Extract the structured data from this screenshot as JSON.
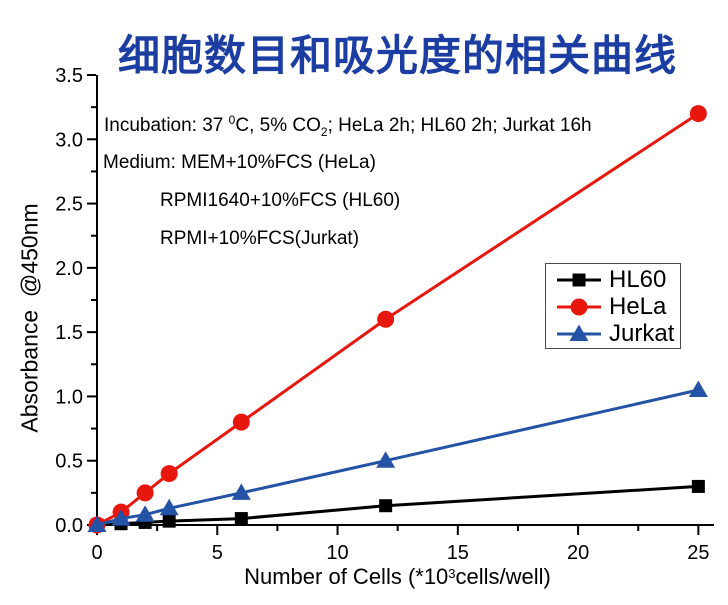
{
  "colors": {
    "title": "#1c3da2",
    "axis": "#000000",
    "legend_border": "#4a4a4a"
  },
  "annotations": {
    "incubation": {
      "parts": [
        "Incubation: 37 ",
        "0",
        "C, 5% CO",
        "2",
        "; HeLa 2h; HL60 2h; Jurkat 16h"
      ]
    },
    "medium_line1": "Medium: MEM+10%FCS (HeLa)",
    "medium_line2": "RPMI1640+10%FCS (HL60)",
    "medium_line3": "RPMI+10%FCS(Jurkat)"
  },
  "chart_data": {
    "type": "line",
    "title": "细胞数目和吸光度的相关曲线",
    "x": [
      0,
      1,
      2,
      3,
      6,
      12,
      25
    ],
    "series": [
      {
        "name": "HL60",
        "color": "#000000",
        "marker": "square",
        "values": [
          0,
          0.01,
          0.02,
          0.03,
          0.05,
          0.15,
          0.3
        ]
      },
      {
        "name": "HeLa",
        "color": "#e8170d",
        "marker": "circle",
        "values": [
          0,
          0.1,
          0.25,
          0.4,
          0.8,
          1.6,
          3.2
        ]
      },
      {
        "name": "Jurkat",
        "color": "#2453a6",
        "marker": "triangle",
        "values": [
          0,
          0.05,
          0.08,
          0.13,
          0.25,
          0.5,
          1.05
        ]
      }
    ],
    "xlabel_parts": [
      "Number of Cells (*10",
      "3",
      "cells/well)"
    ],
    "ylabel": "Absorbance  @450nm",
    "xlim": [
      0,
      25.65
    ],
    "ylim": [
      0,
      3.5
    ],
    "xticks": [
      0,
      5,
      10,
      15,
      20,
      25
    ],
    "yticks": [
      0,
      0.5,
      1,
      1.5,
      2,
      2.5,
      3,
      3.5
    ],
    "ytick_decimals": 1,
    "x_minor_step": 2.5,
    "y_minor_step": 0.25,
    "grid": false,
    "legend_position": "inside-right-middle"
  }
}
